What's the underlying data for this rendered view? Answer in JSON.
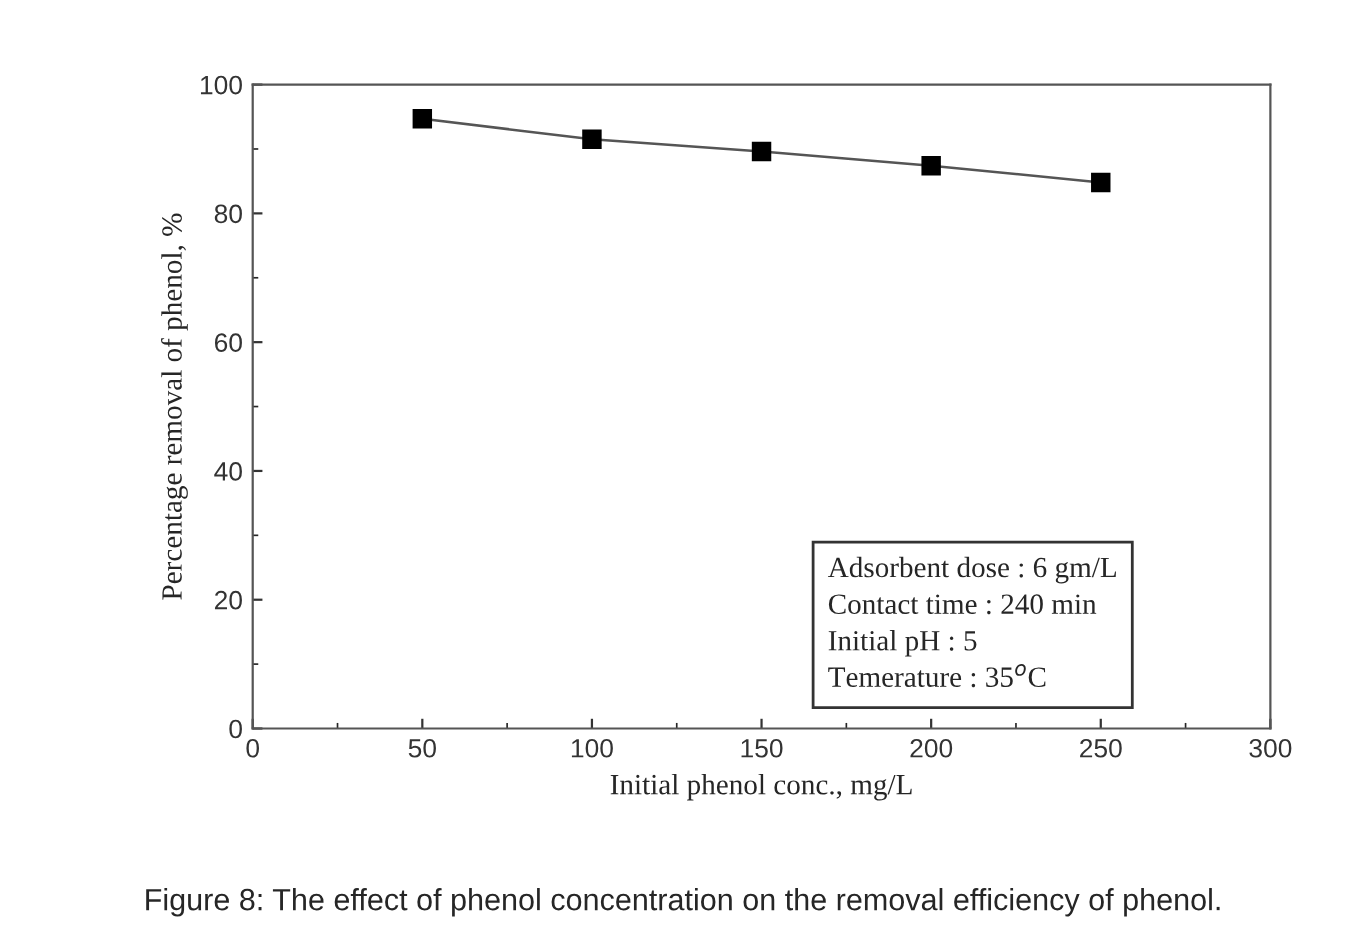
{
  "chart_data": {
    "type": "line",
    "xlabel": "Initial phenol conc., mg/L",
    "ylabel": "Percentage removal of phenol, %",
    "x": [
      50,
      100,
      150,
      200,
      250
    ],
    "series": [
      {
        "color": "#000000",
        "values": [
          94.7,
          91.5,
          89.6,
          87.4,
          84.8
        ]
      }
    ],
    "marker": "square",
    "line_style": "solid",
    "xlim": [
      0,
      300
    ],
    "xticks": [
      0,
      50,
      100,
      150,
      200,
      250,
      300
    ],
    "ylim": [
      0,
      100
    ],
    "yticks": [
      0,
      20,
      40,
      60,
      80,
      100
    ],
    "grid": false,
    "legend": false,
    "annotations": [
      "Adsorbent dose : 6 gm/L\nContact time : 240 min\nInitial pH : 5\nTemerature : 35$^{o}$C",
      "Figure 8: The effect of phenol concentration on the removal efficiency of phenol."
    ]
  }
}
